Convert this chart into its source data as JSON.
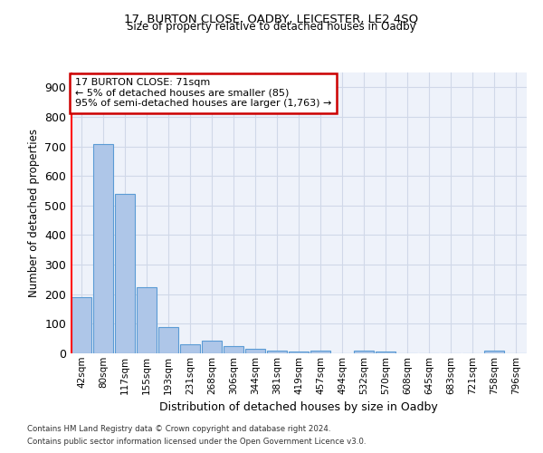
{
  "title_line1": "17, BURTON CLOSE, OADBY, LEICESTER, LE2 4SQ",
  "title_line2": "Size of property relative to detached houses in Oadby",
  "xlabel": "Distribution of detached houses by size in Oadby",
  "ylabel": "Number of detached properties",
  "categories": [
    "42sqm",
    "80sqm",
    "117sqm",
    "155sqm",
    "193sqm",
    "231sqm",
    "268sqm",
    "306sqm",
    "344sqm",
    "381sqm",
    "419sqm",
    "457sqm",
    "494sqm",
    "532sqm",
    "570sqm",
    "608sqm",
    "645sqm",
    "683sqm",
    "721sqm",
    "758sqm",
    "796sqm"
  ],
  "values": [
    190,
    707,
    540,
    225,
    90,
    30,
    42,
    25,
    15,
    10,
    5,
    10,
    0,
    8,
    5,
    0,
    0,
    0,
    0,
    10,
    0
  ],
  "bar_color": "#aec6e8",
  "bar_edge_color": "#5b9bd5",
  "annotation_line1": "17 BURTON CLOSE: 71sqm",
  "annotation_line2": "← 5% of detached houses are smaller (85)",
  "annotation_line3": "95% of semi-detached houses are larger (1,763) →",
  "vline_color": "#ff0000",
  "annotation_box_edge_color": "#cc0000",
  "ylim": [
    0,
    950
  ],
  "yticks": [
    0,
    100,
    200,
    300,
    400,
    500,
    600,
    700,
    800,
    900
  ],
  "grid_color": "#d0d8e8",
  "bg_color": "#eef2fa",
  "footer_line1": "Contains HM Land Registry data © Crown copyright and database right 2024.",
  "footer_line2": "Contains public sector information licensed under the Open Government Licence v3.0."
}
